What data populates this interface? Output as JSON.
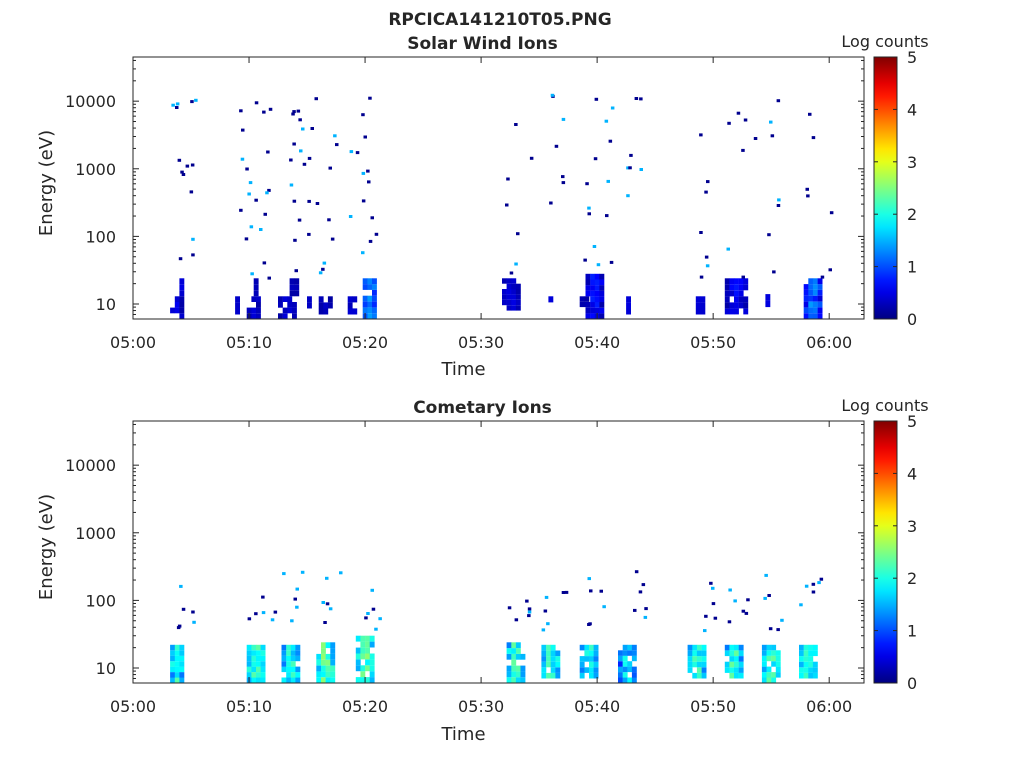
{
  "figure": {
    "title": "RPCICA141210T05.PNG"
  },
  "chart_data": [
    {
      "type": "heatmap",
      "title": "Solar Wind Ions",
      "xlabel": "Time",
      "ylabel": "Energy (eV)",
      "x_ticks": [
        "05:00",
        "05:10",
        "05:20",
        "05:30",
        "05:40",
        "05:50",
        "06:00"
      ],
      "y_ticks": [
        "10",
        "100",
        "1000",
        "10000"
      ],
      "y_scale": "log",
      "y_range": [
        6,
        45000
      ],
      "x_range_minutes": [
        0,
        63
      ],
      "colorbar": {
        "label": "Log counts",
        "ticks": [
          "0",
          "1",
          "2",
          "3",
          "4",
          "5"
        ],
        "range": [
          0,
          5
        ],
        "colormap": "jet"
      },
      "clusters": [
        {
          "t": [
            3.2,
            4.5
          ],
          "e": [
            6,
            13
          ],
          "c": [
            0.1,
            0.6
          ]
        },
        {
          "t": [
            4.0,
            4.6
          ],
          "e": [
            13,
            24
          ],
          "c": [
            0.2,
            0.5
          ]
        },
        {
          "t": [
            8.8,
            9.2
          ],
          "e": [
            7,
            13
          ],
          "c": [
            0.3,
            0.4
          ]
        },
        {
          "t": [
            9.8,
            11.0
          ],
          "e": [
            6,
            13
          ],
          "c": [
            0.1,
            0.5
          ]
        },
        {
          "t": [
            10.4,
            11.0
          ],
          "e": [
            13,
            24
          ],
          "c": [
            0.1,
            0.3
          ]
        },
        {
          "t": [
            12.5,
            14.0
          ],
          "e": [
            6,
            13
          ],
          "c": [
            0.1,
            0.5
          ]
        },
        {
          "t": [
            13.5,
            14.2
          ],
          "e": [
            13,
            24
          ],
          "c": [
            0.1,
            0.4
          ]
        },
        {
          "t": [
            15.0,
            15.4
          ],
          "e": [
            7,
            13
          ],
          "c": [
            0.2,
            0.4
          ]
        },
        {
          "t": [
            16.0,
            17.0
          ],
          "e": [
            7,
            13
          ],
          "c": [
            0.1,
            0.4
          ]
        },
        {
          "t": [
            18.5,
            19.2
          ],
          "e": [
            7,
            13
          ],
          "c": [
            0.2,
            0.5
          ]
        },
        {
          "t": [
            19.8,
            20.8
          ],
          "e": [
            6,
            24
          ],
          "c": [
            0.6,
            1.6
          ]
        },
        {
          "t": [
            31.8,
            33.5
          ],
          "e": [
            8,
            24
          ],
          "c": [
            0.1,
            0.6
          ]
        },
        {
          "t": [
            35.8,
            36.2
          ],
          "e": [
            7,
            13
          ],
          "c": [
            0.3,
            0.5
          ]
        },
        {
          "t": [
            38.5,
            39.2
          ],
          "e": [
            9,
            13
          ],
          "c": [
            0.1,
            0.4
          ]
        },
        {
          "t": [
            39.0,
            40.5
          ],
          "e": [
            6,
            28
          ],
          "c": [
            0.1,
            0.9
          ]
        },
        {
          "t": [
            42.5,
            42.9
          ],
          "e": [
            7,
            13
          ],
          "c": [
            0.3,
            0.5
          ]
        },
        {
          "t": [
            48.5,
            49.2
          ],
          "e": [
            7,
            13
          ],
          "c": [
            0.3,
            0.5
          ]
        },
        {
          "t": [
            51.0,
            53.0
          ],
          "e": [
            7,
            24
          ],
          "c": [
            0.1,
            0.8
          ]
        },
        {
          "t": [
            54.5,
            54.9
          ],
          "e": [
            9,
            14
          ],
          "c": [
            0.3,
            0.5
          ]
        },
        {
          "t": [
            57.8,
            59.5
          ],
          "e": [
            6,
            24
          ],
          "c": [
            0.2,
            1.6
          ]
        }
      ]
    },
    {
      "type": "heatmap",
      "title": "Cometary Ions",
      "xlabel": "Time",
      "ylabel": "Energy (eV)",
      "x_ticks": [
        "05:00",
        "05:10",
        "05:20",
        "05:30",
        "05:40",
        "05:50",
        "06:00"
      ],
      "y_ticks": [
        "10",
        "100",
        "1000",
        "10000"
      ],
      "y_scale": "log",
      "y_range": [
        6,
        45000
      ],
      "x_range_minutes": [
        0,
        63
      ],
      "colorbar": {
        "label": "Log counts",
        "ticks": [
          "0",
          "1",
          "2",
          "3",
          "4",
          "5"
        ],
        "range": [
          0,
          5
        ],
        "colormap": "jet"
      },
      "clusters": [
        {
          "t": [
            3.2,
            4.6
          ],
          "e": [
            6,
            22
          ],
          "c": [
            0.8,
            2.6
          ]
        },
        {
          "t": [
            9.8,
            11.4
          ],
          "e": [
            6,
            22
          ],
          "c": [
            1.2,
            2.6
          ]
        },
        {
          "t": [
            12.8,
            14.4
          ],
          "e": [
            6,
            22
          ],
          "c": [
            1.0,
            2.4
          ]
        },
        {
          "t": [
            15.8,
            17.4
          ],
          "e": [
            6,
            24
          ],
          "c": [
            1.2,
            2.8
          ]
        },
        {
          "t": [
            19.2,
            20.9
          ],
          "e": [
            6,
            30
          ],
          "c": [
            1.0,
            2.8
          ]
        },
        {
          "t": [
            32.2,
            33.8
          ],
          "e": [
            6,
            24
          ],
          "c": [
            1.0,
            2.6
          ]
        },
        {
          "t": [
            35.2,
            36.8
          ],
          "e": [
            7,
            22
          ],
          "c": [
            1.0,
            2.6
          ]
        },
        {
          "t": [
            38.5,
            40.0
          ],
          "e": [
            7,
            22
          ],
          "c": [
            1.0,
            2.4
          ]
        },
        {
          "t": [
            41.8,
            43.4
          ],
          "e": [
            6,
            22
          ],
          "c": [
            0.6,
            2.2
          ]
        },
        {
          "t": [
            47.8,
            49.4
          ],
          "e": [
            7,
            22
          ],
          "c": [
            1.0,
            2.6
          ]
        },
        {
          "t": [
            51.0,
            52.6
          ],
          "e": [
            7,
            22
          ],
          "c": [
            1.0,
            2.6
          ]
        },
        {
          "t": [
            54.2,
            55.8
          ],
          "e": [
            6,
            22
          ],
          "c": [
            1.0,
            2.6
          ]
        },
        {
          "t": [
            57.4,
            59.0
          ],
          "e": [
            7,
            22
          ],
          "c": [
            1.0,
            2.6
          ]
        }
      ]
    }
  ]
}
